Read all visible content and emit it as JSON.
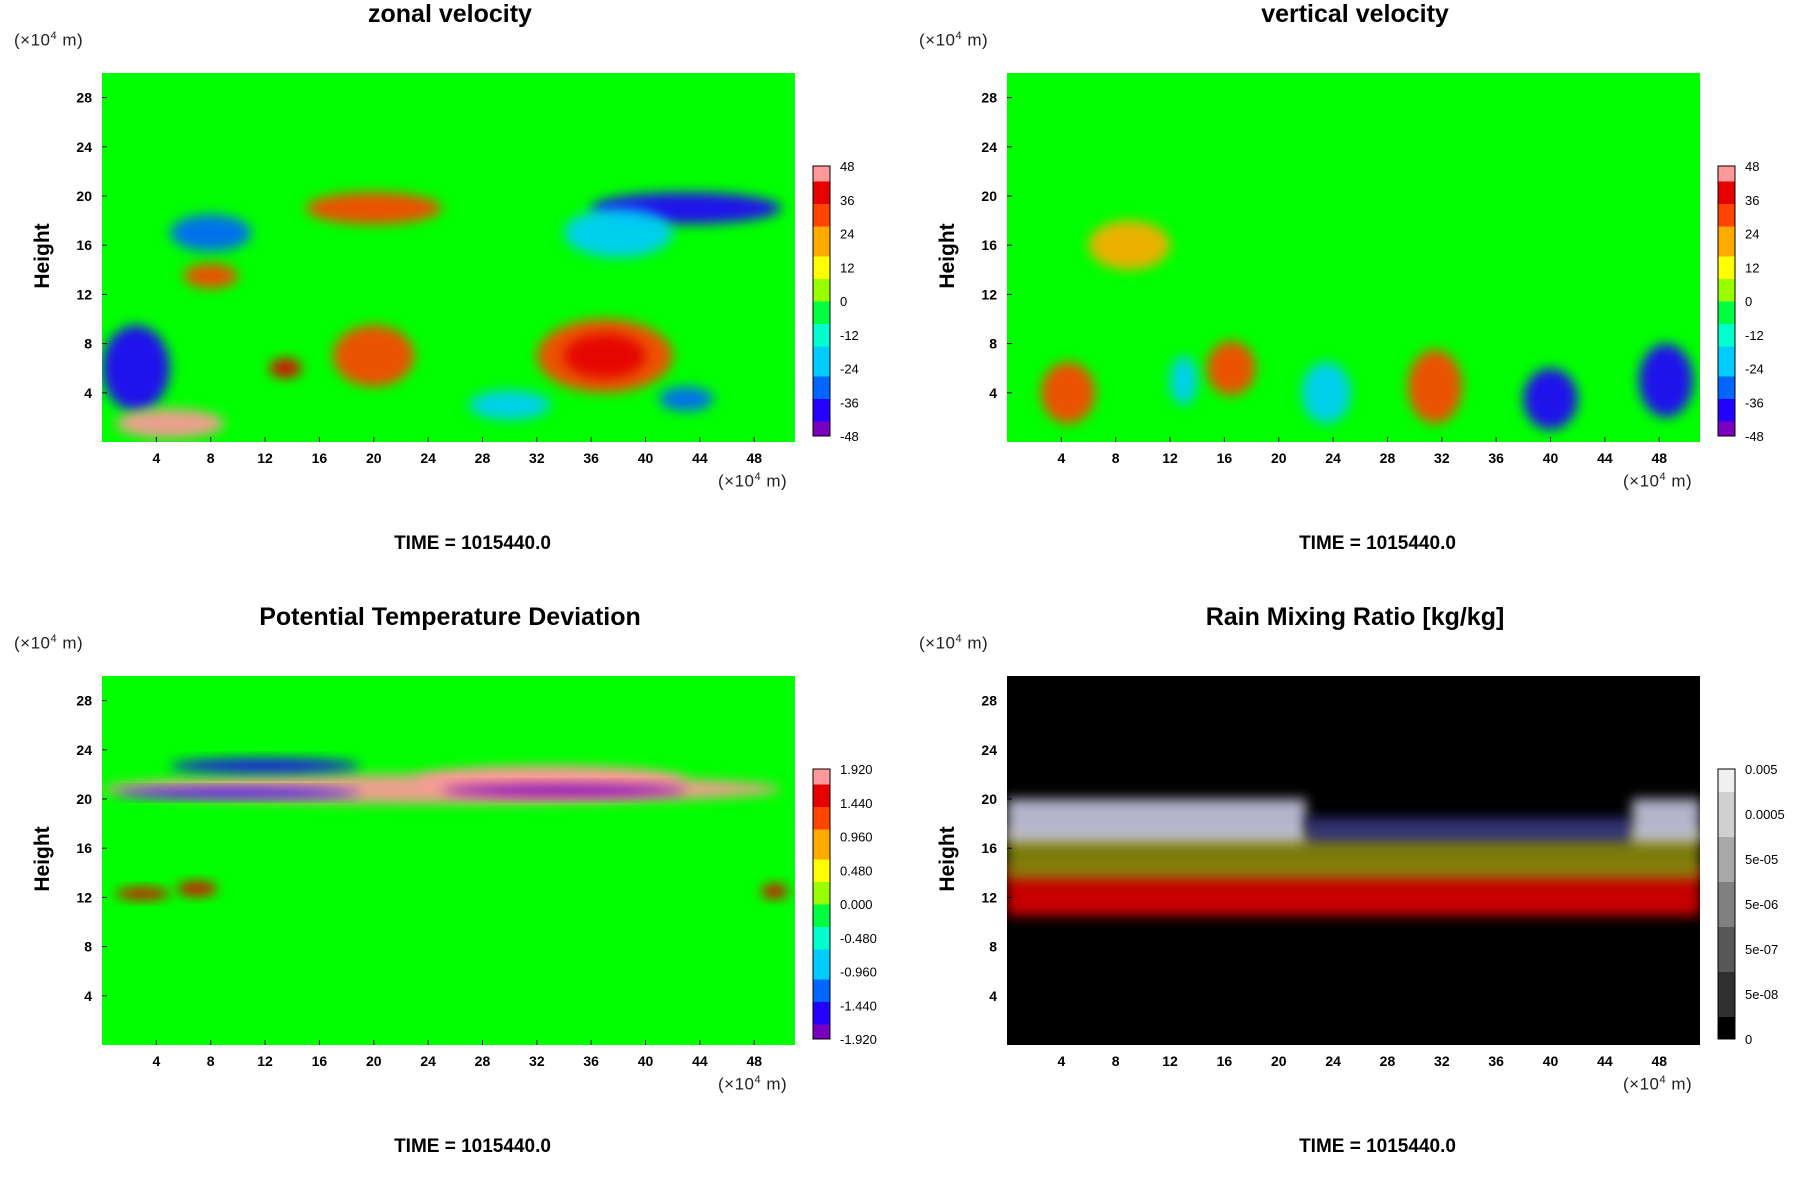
{
  "colors": {
    "background": "#00ff00",
    "rain_background": "#000000",
    "rainbow_scale": [
      "#7a00c0",
      "#2300ff",
      "#0066ff",
      "#00ccff",
      "#00ffcc",
      "#00ff40",
      "#99ff00",
      "#ffff00",
      "#ffaa00",
      "#ff4400",
      "#e60000",
      "#ff9999"
    ],
    "gray_scale": [
      "#000000",
      "#303030",
      "#585858",
      "#808080",
      "#a8a8a8",
      "#d0d0d0",
      "#f0f0f0"
    ]
  },
  "charts": [
    {
      "title": "zonal velocity",
      "ylabel": "Height",
      "yunit_prefix": "(×10",
      "yunit_exp": "4",
      "yunit_suffix": " m)",
      "xunit_prefix": "(×10",
      "xunit_exp": "4",
      "xunit_suffix": " m)",
      "time_label": "TIME = 1015440.0"
    },
    {
      "title": "vertical velocity",
      "ylabel": "Height",
      "yunit_prefix": "(×10",
      "yunit_exp": "4",
      "yunit_suffix": " m)",
      "xunit_prefix": "(×10",
      "xunit_exp": "4",
      "xunit_suffix": " m)",
      "time_label": "TIME = 1015440.0"
    },
    {
      "title": "Potential Temperature Deviation",
      "ylabel": "Height",
      "yunit_prefix": "(×10",
      "yunit_exp": "4",
      "yunit_suffix": " m)",
      "xunit_prefix": "(×10",
      "xunit_exp": "4",
      "xunit_suffix": " m)",
      "time_label": "TIME = 1015440.0"
    },
    {
      "title": "Rain Mixing Ratio [kg/kg]",
      "ylabel": "Height",
      "yunit_prefix": "(×10",
      "yunit_exp": "4",
      "yunit_suffix": " m)",
      "xunit_prefix": "(×10",
      "xunit_exp": "4",
      "xunit_suffix": " m)",
      "time_label": "TIME = 1015440.0"
    }
  ],
  "chart_data": [
    {
      "type": "heatmap",
      "title": "zonal velocity",
      "ylabel": "Height",
      "xlim": [
        0,
        51
      ],
      "ylim": [
        0,
        30
      ],
      "x_ticks": [
        "4",
        "8",
        "12",
        "16",
        "20",
        "24",
        "28",
        "32",
        "36",
        "40",
        "44",
        "48"
      ],
      "y_ticks": [
        "4",
        "8",
        "12",
        "16",
        "20",
        "24",
        "28"
      ],
      "colorbar": {
        "scale": "rainbow",
        "labels": [
          "48",
          "36",
          "24",
          "12",
          "0",
          "-12",
          "-24",
          "-36",
          "-48"
        ]
      },
      "features": [
        {
          "x": 2.5,
          "y": 6,
          "rx": 2.5,
          "ry": 3.5,
          "level": 1
        },
        {
          "x": 5,
          "y": 1.5,
          "rx": 4,
          "ry": 1.2,
          "level": 11
        },
        {
          "x": 20,
          "y": 7,
          "rx": 3,
          "ry": 2.5,
          "level": 9
        },
        {
          "x": 37,
          "y": 7,
          "rx": 5,
          "ry": 3,
          "level": 9
        },
        {
          "x": 37,
          "y": 7,
          "rx": 3,
          "ry": 1.8,
          "level": 10
        },
        {
          "x": 43,
          "y": 3.5,
          "rx": 2,
          "ry": 1,
          "level": 2
        },
        {
          "x": 30,
          "y": 3,
          "rx": 3,
          "ry": 1.2,
          "level": 3
        },
        {
          "x": 20,
          "y": 19,
          "rx": 5,
          "ry": 1.3,
          "level": 9
        },
        {
          "x": 43,
          "y": 19,
          "rx": 7,
          "ry": 1.3,
          "level": 1
        },
        {
          "x": 38,
          "y": 17,
          "rx": 4,
          "ry": 2,
          "level": 3
        },
        {
          "x": 8,
          "y": 17,
          "rx": 3,
          "ry": 1.5,
          "level": 2
        },
        {
          "x": 8,
          "y": 13.5,
          "rx": 2,
          "ry": 1,
          "level": 9
        },
        {
          "x": 13.5,
          "y": 6,
          "rx": 1.2,
          "ry": 0.8,
          "level": 10
        }
      ]
    },
    {
      "type": "heatmap",
      "title": "vertical velocity",
      "ylabel": "Height",
      "xlim": [
        0,
        51
      ],
      "ylim": [
        0,
        30
      ],
      "x_ticks": [
        "4",
        "8",
        "12",
        "16",
        "20",
        "24",
        "28",
        "32",
        "36",
        "40",
        "44",
        "48"
      ],
      "y_ticks": [
        "4",
        "8",
        "12",
        "16",
        "20",
        "24",
        "28"
      ],
      "colorbar": {
        "scale": "rainbow",
        "labels": [
          "48",
          "36",
          "24",
          "12",
          "0",
          "-12",
          "-24",
          "-36",
          "-48"
        ]
      },
      "features": [
        {
          "x": 4.5,
          "y": 4,
          "rx": 2,
          "ry": 2.5,
          "level": 9
        },
        {
          "x": 16.5,
          "y": 6,
          "rx": 1.8,
          "ry": 2.2,
          "level": 9
        },
        {
          "x": 31.5,
          "y": 4.5,
          "rx": 2,
          "ry": 3,
          "level": 9
        },
        {
          "x": 40,
          "y": 3.5,
          "rx": 2,
          "ry": 2.5,
          "level": 1
        },
        {
          "x": 48.5,
          "y": 5,
          "rx": 2,
          "ry": 3,
          "level": 1
        },
        {
          "x": 23.5,
          "y": 4,
          "rx": 1.8,
          "ry": 2.5,
          "level": 3
        },
        {
          "x": 13,
          "y": 5,
          "rx": 1,
          "ry": 2,
          "level": 3
        },
        {
          "x": 9,
          "y": 16,
          "rx": 3,
          "ry": 2,
          "level": 8
        }
      ]
    },
    {
      "type": "heatmap",
      "title": "Potential Temperature Deviation",
      "ylabel": "Height",
      "xlim": [
        0,
        51
      ],
      "ylim": [
        0,
        30
      ],
      "x_ticks": [
        "4",
        "8",
        "12",
        "16",
        "20",
        "24",
        "28",
        "32",
        "36",
        "40",
        "44",
        "48"
      ],
      "y_ticks": [
        "4",
        "8",
        "12",
        "16",
        "20",
        "24",
        "28"
      ],
      "colorbar": {
        "scale": "rainbow",
        "labels": [
          "1.920",
          "1.440",
          "0.960",
          "0.480",
          "0.000",
          "-0.480",
          "-0.960",
          "-1.440",
          "-1.920"
        ]
      },
      "features": [
        {
          "x": 25,
          "y": 20.8,
          "rx": 25,
          "ry": 1.2,
          "level": 11
        },
        {
          "x": 33,
          "y": 21.5,
          "rx": 10,
          "ry": 1.2,
          "level": 11
        },
        {
          "x": 34,
          "y": 20.7,
          "rx": 9,
          "ry": 0.5,
          "level": 0
        },
        {
          "x": 10,
          "y": 20.5,
          "rx": 9,
          "ry": 0.4,
          "level": 1
        },
        {
          "x": 12,
          "y": 22.7,
          "rx": 7,
          "ry": 0.6,
          "level": 1
        },
        {
          "x": 3,
          "y": 12.3,
          "rx": 2,
          "ry": 0.5,
          "level": 10
        },
        {
          "x": 7,
          "y": 12.7,
          "rx": 1.5,
          "ry": 0.6,
          "level": 10
        },
        {
          "x": 49.5,
          "y": 12.5,
          "rx": 1,
          "ry": 0.6,
          "level": 10
        }
      ]
    },
    {
      "type": "heatmap",
      "title": "Rain Mixing Ratio [kg/kg]",
      "ylabel": "Height",
      "xlim": [
        0,
        51
      ],
      "ylim": [
        0,
        30
      ],
      "x_ticks": [
        "4",
        "8",
        "12",
        "16",
        "20",
        "24",
        "28",
        "32",
        "36",
        "40",
        "44",
        "48"
      ],
      "y_ticks": [
        "4",
        "8",
        "12",
        "16",
        "20",
        "24",
        "28"
      ],
      "colorbar": {
        "scale": "gray",
        "labels": [
          "0.005",
          "0.0005",
          "5e-05",
          "5e-06",
          "5e-07",
          "5e-08",
          "0"
        ]
      },
      "bands": [
        {
          "x0": 0,
          "x1": 51,
          "y0": 10.5,
          "y1": 14.5,
          "color": "#dd0000"
        },
        {
          "x0": 0,
          "x1": 51,
          "y0": 13.5,
          "y1": 17.5,
          "color": "#8a8a10"
        },
        {
          "x0": 0,
          "x1": 22,
          "y0": 16.5,
          "y1": 20,
          "color": "#c8c8e0"
        },
        {
          "x0": 22,
          "x1": 46,
          "y0": 16.5,
          "y1": 18.5,
          "color": "#303080"
        },
        {
          "x0": 46,
          "x1": 51,
          "y0": 16.5,
          "y1": 20,
          "color": "#c8c8e0"
        }
      ]
    }
  ]
}
